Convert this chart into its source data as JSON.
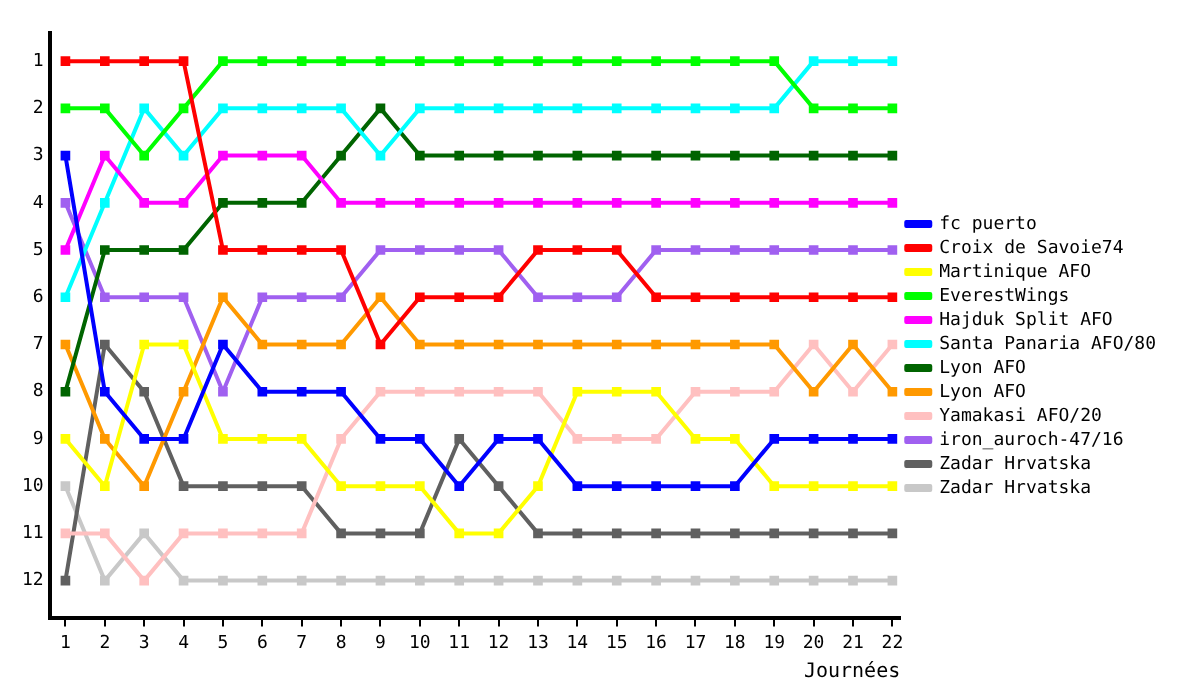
{
  "chart_data": {
    "type": "line",
    "xlabel": "Journées",
    "x": [
      1,
      2,
      3,
      4,
      5,
      6,
      7,
      8,
      9,
      10,
      11,
      12,
      13,
      14,
      15,
      16,
      17,
      18,
      19,
      20,
      21,
      22
    ],
    "xlim": [
      0.6,
      22.2
    ],
    "xticks": [
      1,
      2,
      3,
      4,
      5,
      6,
      7,
      8,
      9,
      10,
      11,
      12,
      13,
      14,
      15,
      16,
      17,
      18,
      19,
      20,
      21,
      22
    ],
    "ylim": [
      12.8,
      0.4
    ],
    "yticks": [
      1,
      2,
      3,
      4,
      5,
      6,
      7,
      8,
      9,
      10,
      11,
      12
    ],
    "grid": false,
    "legend": "right",
    "marker": "square",
    "line_style": "solid",
    "series": [
      {
        "name": "fc puerto",
        "color": "#0000ff",
        "values": [
          3,
          8,
          9,
          9,
          7,
          8,
          8,
          8,
          9,
          9,
          10,
          9,
          9,
          10,
          10,
          10,
          10,
          10,
          9,
          9,
          9,
          9
        ]
      },
      {
        "name": "Croix de Savoie74",
        "color": "#ff0000",
        "values": [
          1,
          1,
          1,
          1,
          5,
          5,
          5,
          5,
          7,
          6,
          6,
          6,
          5,
          5,
          5,
          6,
          6,
          6,
          6,
          6,
          6,
          6
        ]
      },
      {
        "name": "Martinique AFO",
        "color": "#ffff00",
        "values": [
          9,
          10,
          7,
          7,
          9,
          9,
          9,
          10,
          10,
          10,
          11,
          11,
          10,
          8,
          8,
          8,
          9,
          9,
          10,
          10,
          10,
          10
        ]
      },
      {
        "name": "EverestWings",
        "color": "#00ff00",
        "values": [
          2,
          2,
          3,
          2,
          1,
          1,
          1,
          1,
          1,
          1,
          1,
          1,
          1,
          1,
          1,
          1,
          1,
          1,
          1,
          2,
          2,
          2
        ]
      },
      {
        "name": "Hajduk Split AFO",
        "color": "#ff00ff",
        "values": [
          5,
          3,
          4,
          4,
          3,
          3,
          3,
          4,
          4,
          4,
          4,
          4,
          4,
          4,
          4,
          4,
          4,
          4,
          4,
          4,
          4,
          4
        ]
      },
      {
        "name": "Santa Panaria AFO/80",
        "color": "#00ffff",
        "values": [
          6,
          4,
          2,
          3,
          2,
          2,
          2,
          2,
          3,
          2,
          2,
          2,
          2,
          2,
          2,
          2,
          2,
          2,
          2,
          1,
          1,
          1
        ]
      },
      {
        "name": "Lyon AFO",
        "color": "#006400",
        "values": [
          8,
          5,
          5,
          5,
          4,
          4,
          4,
          3,
          2,
          3,
          3,
          3,
          3,
          3,
          3,
          3,
          3,
          3,
          3,
          3,
          3,
          3
        ]
      },
      {
        "name": "Lyon AFO",
        "color": "#ff9900",
        "values": [
          7,
          9,
          10,
          8,
          6,
          7,
          7,
          7,
          6,
          7,
          7,
          7,
          7,
          7,
          7,
          7,
          7,
          7,
          7,
          8,
          7,
          8
        ]
      },
      {
        "name": "Yamakasi AFO/20",
        "color": "#ffc0c0",
        "values": [
          11,
          11,
          12,
          11,
          11,
          11,
          11,
          9,
          8,
          8,
          8,
          8,
          8,
          9,
          9,
          9,
          8,
          8,
          8,
          7,
          8,
          7
        ]
      },
      {
        "name": "iron_auroch-47/16",
        "color": "#a060f0",
        "values": [
          4,
          6,
          6,
          6,
          8,
          6,
          6,
          6,
          5,
          5,
          5,
          5,
          6,
          6,
          6,
          5,
          5,
          5,
          5,
          5,
          5,
          5
        ]
      },
      {
        "name": "Zadar Hrvatska",
        "color": "#606060",
        "values": [
          12,
          7,
          8,
          10,
          10,
          10,
          10,
          11,
          11,
          11,
          9,
          10,
          11,
          11,
          11,
          11,
          11,
          11,
          11,
          11,
          11,
          11
        ]
      },
      {
        "name": "Zadar Hrvatska",
        "color": "#c8c8c8",
        "values": [
          10,
          12,
          11,
          12,
          12,
          12,
          12,
          12,
          12,
          12,
          12,
          12,
          12,
          12,
          12,
          12,
          12,
          12,
          12,
          12,
          12,
          12
        ]
      }
    ]
  }
}
